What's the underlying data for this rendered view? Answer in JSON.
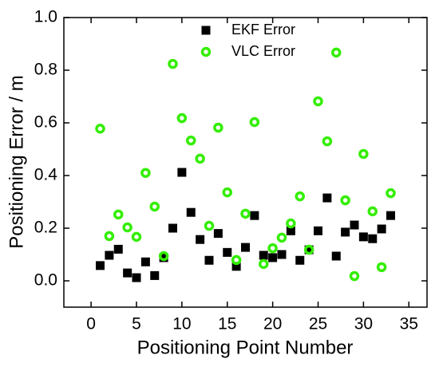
{
  "chart_data": {
    "type": "scatter",
    "x_label": "Positioning Point Number",
    "y_label": "Positioning Error / m",
    "x": [
      1,
      2,
      3,
      4,
      5,
      6,
      7,
      8,
      9,
      10,
      11,
      12,
      13,
      14,
      15,
      16,
      17,
      18,
      19,
      20,
      21,
      22,
      23,
      24,
      25,
      26,
      27,
      28,
      29,
      30,
      31,
      32,
      33
    ],
    "series": [
      {
        "name": "EKF Error",
        "color": "#000000",
        "marker": "square",
        "values": [
          0.058,
          0.097,
          0.12,
          0.03,
          0.012,
          0.072,
          0.02,
          0.088,
          0.2,
          0.412,
          0.26,
          0.157,
          0.078,
          0.18,
          0.108,
          0.055,
          0.127,
          0.248,
          0.097,
          0.088,
          0.1,
          0.19,
          0.078,
          0.118,
          0.19,
          0.315,
          0.094,
          0.185,
          0.212,
          0.167,
          0.16,
          0.197,
          0.248
        ]
      },
      {
        "name": "VLC Error",
        "color": "#33ee00",
        "marker": "circle",
        "values": [
          0.578,
          0.17,
          0.252,
          0.203,
          0.167,
          0.41,
          0.282,
          0.094,
          0.824,
          0.618,
          0.533,
          0.464,
          0.209,
          0.582,
          0.336,
          0.079,
          0.255,
          0.603,
          0.064,
          0.124,
          0.164,
          0.218,
          0.321,
          0.118,
          0.682,
          0.53,
          0.867,
          0.306,
          0.018,
          0.482,
          0.264,
          0.052,
          0.333
        ]
      }
    ],
    "xlim": [
      -3,
      37
    ],
    "xticks": [
      0,
      5,
      10,
      15,
      20,
      25,
      30,
      35
    ],
    "ylim": [
      -0.1,
      1.0
    ],
    "yticks": [
      {
        "value": 0,
        "label": "0.0"
      },
      0.2,
      0.4,
      0.6,
      0.8,
      {
        "value": 1,
        "label": "1.0"
      }
    ],
    "legend": "top"
  }
}
